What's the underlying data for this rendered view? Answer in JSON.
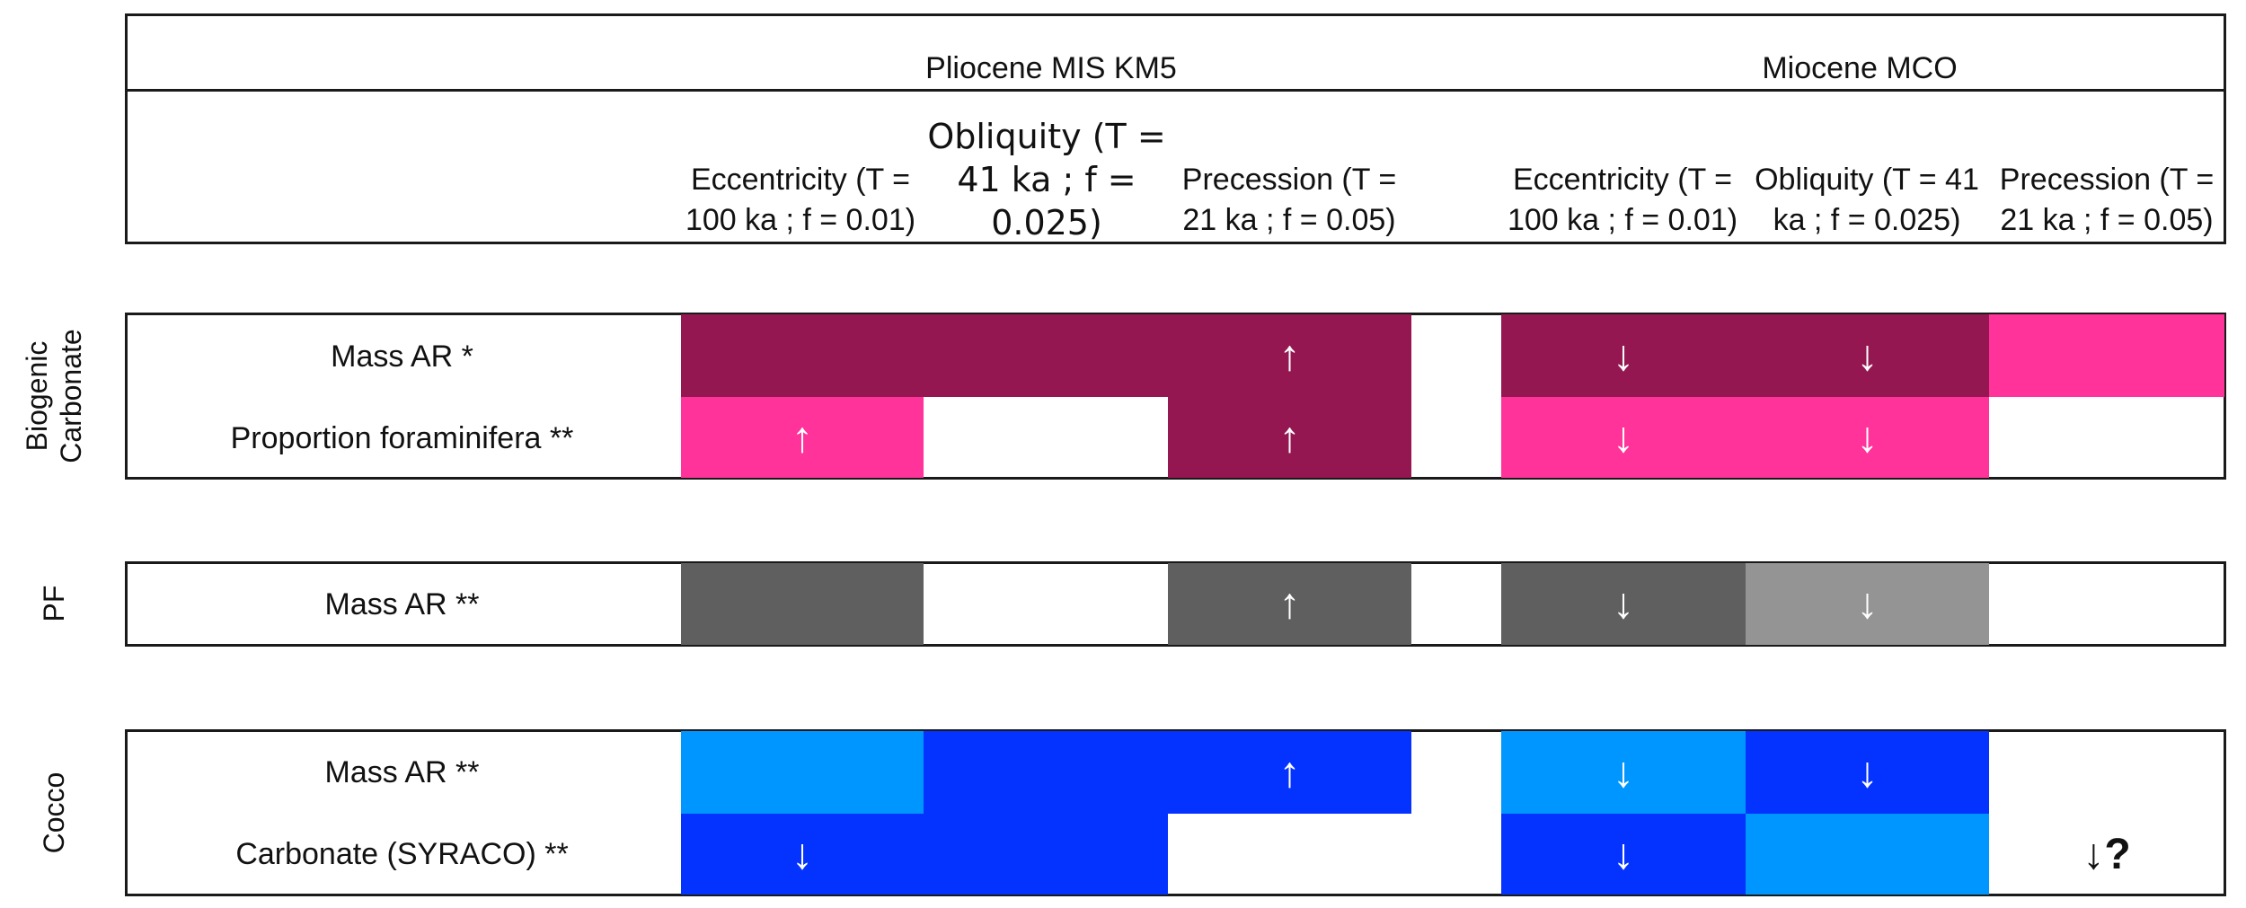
{
  "header": {
    "periods": [
      "Pliocene MIS KM5",
      "Miocene MCO"
    ],
    "columns": [
      "Eccentricity (T = 100 ka ; f = 0.01)",
      "Obliquity (T = 41 ka ; f = 0.025)",
      "Precession (T = 21 ka ; f = 0.05)",
      "Eccentricity (T = 100 ka ; f = 0.01)",
      "Obliquity (T = 41 ka ; f = 0.025)",
      "Precession (T = 21 ka ; f = 0.05)"
    ]
  },
  "groups": [
    {
      "label": "Biogenic Carbonate",
      "rows": [
        "Mass AR *",
        "Proportion foraminifera **"
      ]
    },
    {
      "label": "PF",
      "rows": [
        "Mass AR **"
      ]
    },
    {
      "label": "Cocco",
      "rows": [
        "Mass AR **",
        "Carbonate (SYRACO) **"
      ]
    }
  ],
  "colors": {
    "dark_magenta": "#941751",
    "pink": "#ff3399",
    "dark_gray": "#5f5f5f",
    "light_gray": "#949494",
    "light_blue": "#0096ff",
    "blue": "#0433ff"
  },
  "cells": {
    "g0r0": [
      {
        "color": "#941751",
        "arrow": ""
      },
      {
        "color": "#941751",
        "arrow": ""
      },
      {
        "color": "#941751",
        "arrow": "↑"
      },
      {
        "color": "#941751",
        "arrow": "↓"
      },
      {
        "color": "#941751",
        "arrow": "↓"
      },
      {
        "color": "#ff3399",
        "arrow": ""
      }
    ],
    "g0r1": [
      {
        "color": "#ff3399",
        "arrow": "↑"
      },
      {
        "color": "",
        "arrow": ""
      },
      {
        "color": "#941751",
        "arrow": "↑"
      },
      {
        "color": "#ff3399",
        "arrow": "↓"
      },
      {
        "color": "#ff3399",
        "arrow": "↓"
      },
      {
        "color": "",
        "arrow": ""
      }
    ],
    "g1r0": [
      {
        "color": "#5f5f5f",
        "arrow": ""
      },
      {
        "color": "",
        "arrow": ""
      },
      {
        "color": "#5f5f5f",
        "arrow": "↑"
      },
      {
        "color": "#5f5f5f",
        "arrow": "↓"
      },
      {
        "color": "#949494",
        "arrow": "↓"
      },
      {
        "color": "",
        "arrow": ""
      }
    ],
    "g2r0": [
      {
        "color": "#0096ff",
        "arrow": ""
      },
      {
        "color": "#0433ff",
        "arrow": ""
      },
      {
        "color": "#0433ff",
        "arrow": "↑"
      },
      {
        "color": "#0096ff",
        "arrow": "↓"
      },
      {
        "color": "#0433ff",
        "arrow": "↓"
      },
      {
        "color": "",
        "arrow": ""
      }
    ],
    "g2r1": [
      {
        "color": "#0433ff",
        "arrow": "↓"
      },
      {
        "color": "#0433ff",
        "arrow": ""
      },
      {
        "color": "",
        "arrow": ""
      },
      {
        "color": "#0433ff",
        "arrow": "↓"
      },
      {
        "color": "#0096ff",
        "arrow": ""
      },
      {
        "color": "",
        "arrow": "↓?"
      }
    ]
  }
}
